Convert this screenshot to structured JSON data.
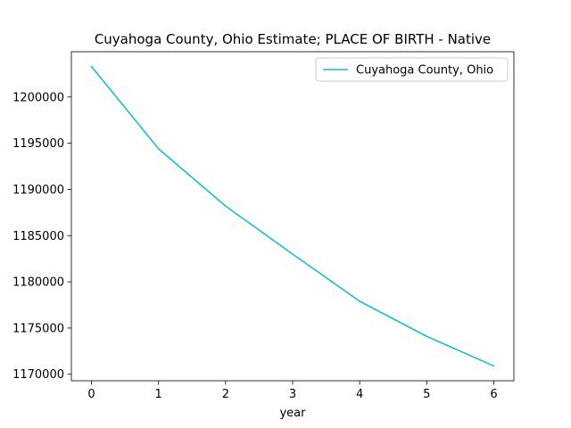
{
  "chart_data": {
    "type": "line",
    "title": "Cuyahoga County, Ohio Estimate; PLACE OF BIRTH - Native",
    "xlabel": "year",
    "ylabel": "",
    "x": [
      0,
      1,
      2,
      3,
      4,
      5,
      6
    ],
    "series": [
      {
        "name": "Cuyahoga County, Ohio",
        "color": "#17becf",
        "values": [
          1203300,
          1194400,
          1188200,
          1183000,
          1177900,
          1174100,
          1170900
        ]
      }
    ],
    "xlim": [
      -0.3,
      6.3
    ],
    "ylim": [
      1169300,
      1204900
    ],
    "xticks": [
      0,
      1,
      2,
      3,
      4,
      5,
      6
    ],
    "yticks": [
      1170000,
      1175000,
      1180000,
      1185000,
      1190000,
      1195000,
      1200000
    ],
    "grid": false,
    "legend_position": "top-right"
  }
}
